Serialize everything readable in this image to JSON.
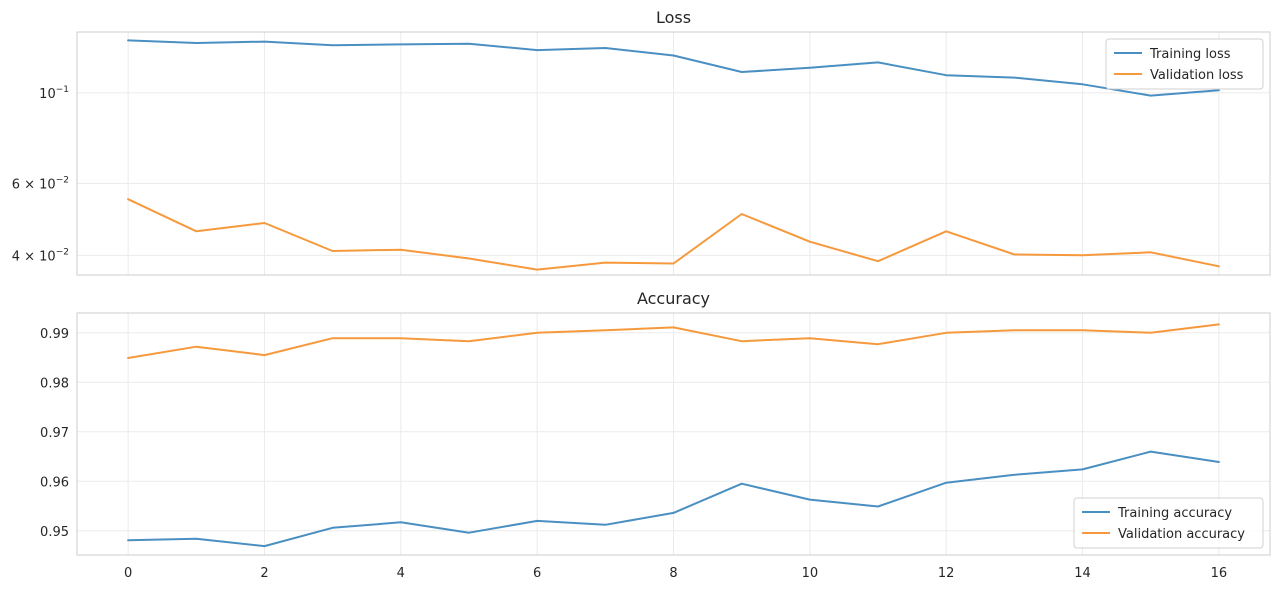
{
  "colors": {
    "training": "#4a8fc1",
    "validation": "#f6993d"
  },
  "chart_data": [
    {
      "type": "line",
      "title": "Loss",
      "xlabel": "",
      "ylabel": "",
      "yscale": "log",
      "grid": true,
      "legend_position": "top-right",
      "xlim": [
        -0.75,
        16.75
      ],
      "ylim": [
        0.0358,
        0.141
      ],
      "y_ticks": [
        {
          "value": 0.1,
          "base": "10",
          "exp": "−1"
        },
        {
          "value": 0.06,
          "base": "6 × 10",
          "exp": "−2"
        },
        {
          "value": 0.04,
          "base": "4 × 10",
          "exp": "−2"
        }
      ],
      "x": [
        0,
        1,
        2,
        3,
        4,
        5,
        6,
        7,
        8,
        9,
        10,
        11,
        12,
        13,
        14,
        15,
        16
      ],
      "series": [
        {
          "name": "Training loss",
          "color_key": "training",
          "values": [
            0.1345,
            0.1325,
            0.1336,
            0.1308,
            0.1315,
            0.132,
            0.1273,
            0.1288,
            0.1235,
            0.1125,
            0.1152,
            0.1188,
            0.1105,
            0.109,
            0.105,
            0.0985,
            0.1015
          ]
        },
        {
          "name": "Validation loss",
          "color_key": "validation",
          "values": [
            0.0549,
            0.0458,
            0.048,
            0.041,
            0.0413,
            0.0393,
            0.0369,
            0.0384,
            0.0382,
            0.0505,
            0.0432,
            0.0387,
            0.0458,
            0.0402,
            0.04,
            0.0407,
            0.0376
          ]
        }
      ]
    },
    {
      "type": "line",
      "title": "Accuracy",
      "xlabel": "",
      "ylabel": "",
      "yscale": "linear",
      "grid": true,
      "legend_position": "lower-right",
      "xlim": [
        -0.75,
        16.75
      ],
      "ylim": [
        0.9451,
        0.994
      ],
      "y_ticks": [
        {
          "value": 0.95,
          "label": "0.95"
        },
        {
          "value": 0.96,
          "label": "0.96"
        },
        {
          "value": 0.97,
          "label": "0.97"
        },
        {
          "value": 0.98,
          "label": "0.98"
        },
        {
          "value": 0.99,
          "label": "0.99"
        }
      ],
      "x_ticks": [
        0,
        2,
        4,
        6,
        8,
        10,
        12,
        14,
        16
      ],
      "x": [
        0,
        1,
        2,
        3,
        4,
        5,
        6,
        7,
        8,
        9,
        10,
        11,
        12,
        13,
        14,
        15,
        16
      ],
      "series": [
        {
          "name": "Training accuracy",
          "color_key": "training",
          "values": [
            0.9481,
            0.9484,
            0.9469,
            0.9506,
            0.9517,
            0.9496,
            0.952,
            0.9512,
            0.9536,
            0.9595,
            0.9563,
            0.9549,
            0.9597,
            0.9613,
            0.9624,
            0.966,
            0.9639
          ]
        },
        {
          "name": "Validation accuracy",
          "color_key": "validation",
          "values": [
            0.9849,
            0.9872,
            0.9855,
            0.9889,
            0.9889,
            0.9883,
            0.99,
            0.9905,
            0.9911,
            0.9883,
            0.9889,
            0.9877,
            0.99,
            0.9905,
            0.9905,
            0.99,
            0.9917
          ]
        }
      ]
    }
  ]
}
